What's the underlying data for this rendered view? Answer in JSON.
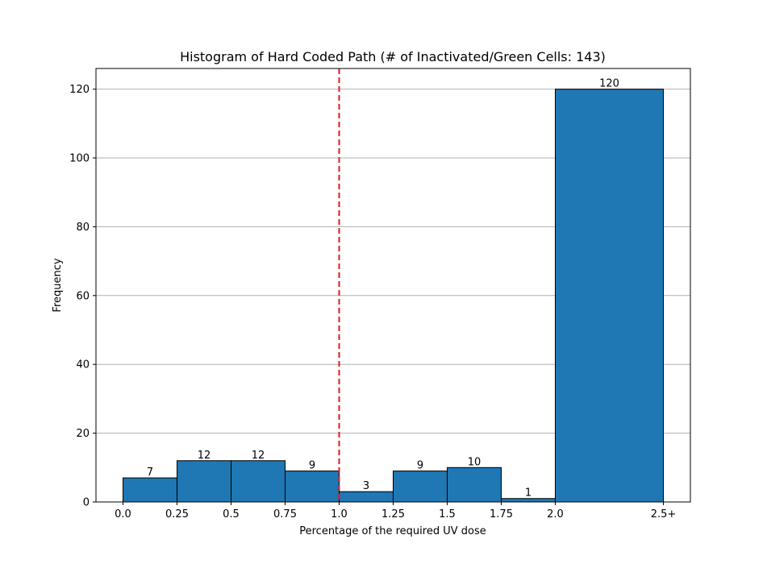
{
  "chart_data": {
    "type": "bar",
    "title": "Histogram of Hard Coded Path (# of Inactivated/Green Cells: 143)",
    "xlabel": "Percentage of the required UV dose",
    "ylabel": "Frequency",
    "bins": [
      {
        "start": 0.0,
        "end": 0.25,
        "label": "7",
        "value": 7
      },
      {
        "start": 0.25,
        "end": 0.5,
        "label": "12",
        "value": 12
      },
      {
        "start": 0.5,
        "end": 0.75,
        "label": "12",
        "value": 12
      },
      {
        "start": 0.75,
        "end": 1.0,
        "label": "9",
        "value": 9
      },
      {
        "start": 1.0,
        "end": 1.25,
        "label": "3",
        "value": 3
      },
      {
        "start": 1.25,
        "end": 1.5,
        "label": "9",
        "value": 9
      },
      {
        "start": 1.5,
        "end": 1.75,
        "label": "10",
        "value": 10
      },
      {
        "start": 1.75,
        "end": 2.0,
        "label": "1",
        "value": 1
      },
      {
        "start": 2.0,
        "end": 2.5,
        "label": "120",
        "value": 120
      }
    ],
    "x_ticks": [
      {
        "value": 0.0,
        "label": "0.0"
      },
      {
        "value": 0.25,
        "label": "0.25"
      },
      {
        "value": 0.5,
        "label": "0.5"
      },
      {
        "value": 0.75,
        "label": "0.75"
      },
      {
        "value": 1.0,
        "label": "1.0"
      },
      {
        "value": 1.25,
        "label": "1.25"
      },
      {
        "value": 1.5,
        "label": "1.5"
      },
      {
        "value": 1.75,
        "label": "1.75"
      },
      {
        "value": 2.0,
        "label": "2.0"
      },
      {
        "value": 2.5,
        "label": "2.5+"
      }
    ],
    "y_ticks": [
      {
        "value": 0,
        "label": "0"
      },
      {
        "value": 20,
        "label": "20"
      },
      {
        "value": 40,
        "label": "40"
      },
      {
        "value": 60,
        "label": "60"
      },
      {
        "value": 80,
        "label": "80"
      },
      {
        "value": 100,
        "label": "100"
      },
      {
        "value": 120,
        "label": "120"
      }
    ],
    "xlim": [
      -0.125,
      2.625
    ],
    "ylim": [
      0,
      126
    ],
    "grid": "y-axis horizontal lines",
    "threshold_line": {
      "x": 1.0,
      "style": "dashed",
      "color": "#e31a1c"
    },
    "bar_color": "#1f77b4",
    "bar_edge_color": "#000000",
    "grid_color": "#b0b0b0"
  }
}
